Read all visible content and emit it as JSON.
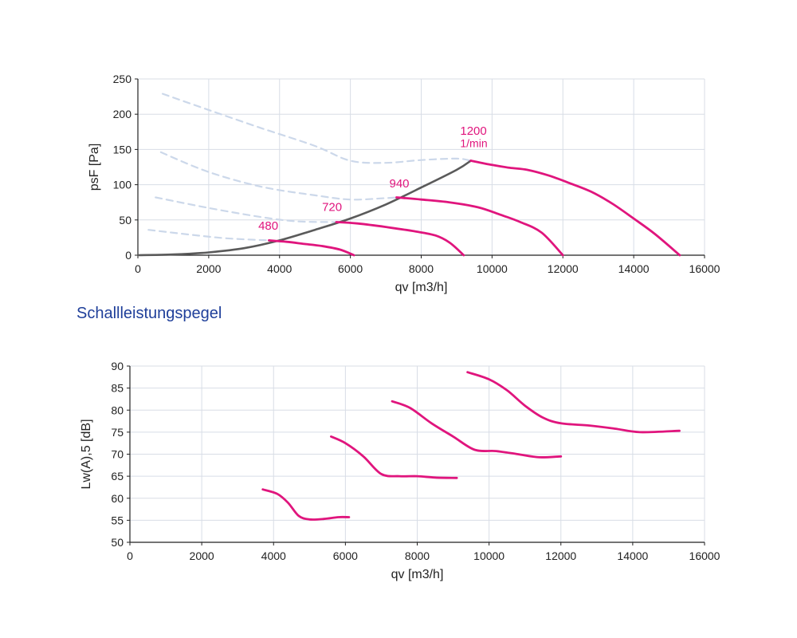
{
  "section_title": "Schallleistungspegel",
  "colors": {
    "curve": "#e0157d",
    "system_line": "#5a5a5a",
    "dashed": "#ccd8ea",
    "grid": "#d8dde6",
    "axis": "#222222"
  },
  "chart_data": [
    {
      "type": "line",
      "xlabel": "qv [m3/h]",
      "ylabel": "psF [Pa]",
      "xlim": [
        0,
        16000
      ],
      "ylim": [
        0,
        250
      ],
      "xticks": [
        "0",
        "2000",
        "4000",
        "6000",
        "8000",
        "10000",
        "12000",
        "14000",
        "16000"
      ],
      "yticks": [
        "0",
        "50",
        "100",
        "150",
        "200",
        "250"
      ],
      "grid": true,
      "annotations": [
        {
          "text": "480",
          "x": 3400,
          "y": 36
        },
        {
          "text": "720",
          "x": 5200,
          "y": 63
        },
        {
          "text": "940",
          "x": 7100,
          "y": 96
        },
        {
          "text": "1200",
          "x": 9100,
          "y": 171
        },
        {
          "text": "1/min",
          "x": 9100,
          "y": 153
        }
      ],
      "series": [
        {
          "name": "480",
          "style": "solid",
          "x": [
            3700,
            4200,
            4700,
            5200,
            5700,
            6100
          ],
          "y": [
            21,
            19,
            16,
            13,
            8,
            0
          ]
        },
        {
          "name": "720",
          "style": "solid",
          "x": [
            5600,
            6200,
            7000,
            7800,
            8400,
            8800,
            9200
          ],
          "y": [
            47,
            45,
            40,
            34,
            28,
            18,
            0
          ]
        },
        {
          "name": "940",
          "style": "solid",
          "x": [
            7300,
            8000,
            8800,
            9600,
            10200,
            10800,
            11400,
            12000
          ],
          "y": [
            82,
            79,
            75,
            68,
            58,
            47,
            32,
            0
          ]
        },
        {
          "name": "1200",
          "style": "solid",
          "x": [
            9400,
            10000,
            10500,
            11000,
            11600,
            12200,
            12800,
            13400,
            14000,
            14600,
            15300
          ],
          "y": [
            134,
            128,
            124,
            121,
            113,
            102,
            90,
            73,
            52,
            30,
            0
          ]
        },
        {
          "name": "",
          "style": "system",
          "x": [
            0,
            1000,
            2000,
            3000,
            4000,
            5000,
            6000,
            7000,
            8000,
            9000,
            9400
          ],
          "y": [
            0,
            1,
            4,
            10,
            21,
            36,
            52,
            72,
            96,
            121,
            134
          ]
        },
        {
          "name": "",
          "style": "dashed",
          "x": [
            700,
            2000,
            3500,
            5000,
            6000,
            7000,
            8000,
            9000,
            9400
          ],
          "y": [
            229,
            206,
            180,
            155,
            134,
            131,
            135,
            137,
            134
          ]
        },
        {
          "name": "",
          "style": "dashed",
          "x": [
            650,
            2000,
            3500,
            5000,
            6000,
            7000,
            7300
          ],
          "y": [
            146,
            118,
            97,
            85,
            79,
            81,
            82
          ]
        },
        {
          "name": "",
          "style": "dashed",
          "x": [
            500,
            2000,
            3500,
            4500,
            5600
          ],
          "y": [
            82,
            67,
            54,
            48,
            47
          ]
        },
        {
          "name": "",
          "style": "dashed",
          "x": [
            300,
            1500,
            2500,
            3700
          ],
          "y": [
            36,
            29,
            24,
            21
          ]
        }
      ]
    },
    {
      "type": "line",
      "xlabel": "qv [m3/h]",
      "ylabel": "Lw(A),5 [dB]",
      "xlim": [
        0,
        16000
      ],
      "ylim": [
        50,
        90
      ],
      "xticks": [
        "0",
        "2000",
        "4000",
        "6000",
        "8000",
        "10000",
        "12000",
        "14000",
        "16000"
      ],
      "yticks": [
        "50",
        "55",
        "60",
        "65",
        "70",
        "75",
        "80",
        "85",
        "90"
      ],
      "grid": true,
      "series": [
        {
          "name": "480",
          "style": "solid",
          "x": [
            3700,
            4100,
            4400,
            4700,
            5000,
            5400,
            5800,
            6100
          ],
          "y": [
            62,
            61,
            59,
            56,
            55.2,
            55.3,
            55.7,
            55.7
          ]
        },
        {
          "name": "720",
          "style": "solid",
          "x": [
            5600,
            6000,
            6500,
            7000,
            7500,
            8000,
            8500,
            9100
          ],
          "y": [
            74,
            72.5,
            69.5,
            65.5,
            65,
            65,
            64.7,
            64.6
          ]
        },
        {
          "name": "940",
          "style": "solid",
          "x": [
            7300,
            7800,
            8400,
            9000,
            9600,
            10200,
            10800,
            11400,
            12000
          ],
          "y": [
            82,
            80.5,
            77,
            74,
            71,
            70.7,
            70,
            69.3,
            69.5
          ]
        },
        {
          "name": "1200",
          "style": "solid",
          "x": [
            9400,
            10000,
            10500,
            11000,
            11500,
            12000,
            12800,
            13500,
            14200,
            15300
          ],
          "y": [
            88.6,
            87,
            84.5,
            81,
            78.3,
            77,
            76.5,
            75.8,
            75,
            75.3
          ]
        }
      ]
    }
  ]
}
